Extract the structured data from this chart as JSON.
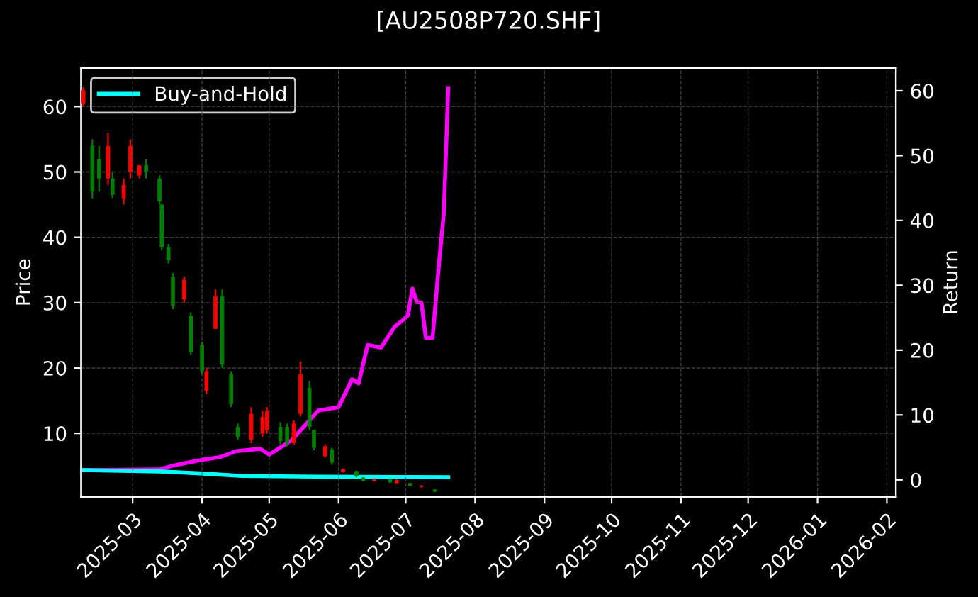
{
  "chart_data": {
    "type": "candlestick",
    "title": "[AU2508P720.SHF]",
    "ylabel": "Price",
    "y2label": "Return",
    "x": [
      "2025-02-07",
      "2025-02-11",
      "2025-02-14",
      "2025-02-18",
      "2025-02-20",
      "2025-02-25",
      "2025-02-28",
      "2025-03-04",
      "2025-03-07",
      "2025-03-13",
      "2025-03-14",
      "2025-03-17",
      "2025-03-19",
      "2025-03-24",
      "2025-03-27",
      "2025-04-01",
      "2025-04-03",
      "2025-04-07",
      "2025-04-10",
      "2025-04-14",
      "2025-04-17",
      "2025-04-23",
      "2025-04-28",
      "2025-04-30",
      "2025-05-06",
      "2025-05-09",
      "2025-05-12",
      "2025-05-15",
      "2025-05-19",
      "2025-05-21",
      "2025-05-26",
      "2025-05-29",
      "2025-06-03",
      "2025-06-09",
      "2025-06-12",
      "2025-06-17",
      "2025-06-24",
      "2025-06-27",
      "2025-07-03",
      "2025-07-08",
      "2025-07-14"
    ],
    "ohlc": [
      [
        60.5,
        63,
        60,
        62.5
      ],
      [
        54,
        55,
        46,
        47
      ],
      [
        52,
        54,
        47,
        49
      ],
      [
        49,
        56,
        48,
        54
      ],
      [
        49,
        50,
        46,
        46.5
      ],
      [
        46,
        49,
        45,
        48
      ],
      [
        50,
        55,
        49,
        54
      ],
      [
        49.5,
        51,
        49,
        51
      ],
      [
        51,
        52,
        49,
        50
      ],
      [
        49,
        49.5,
        45,
        45.5
      ],
      [
        45,
        45,
        38,
        38.5
      ],
      [
        38.5,
        39,
        36,
        36.5
      ],
      [
        34,
        34.5,
        29,
        29.5
      ],
      [
        30.5,
        34,
        30,
        33.5
      ],
      [
        28,
        28.5,
        22,
        22.5
      ],
      [
        23.5,
        24,
        19,
        19.5
      ],
      [
        16.5,
        20,
        16,
        19.5
      ],
      [
        26,
        32,
        26,
        31
      ],
      [
        31,
        32,
        20,
        20.5
      ],
      [
        19,
        19.5,
        14,
        14.5
      ],
      [
        11,
        11.5,
        9,
        9.5
      ],
      [
        9,
        14,
        8.5,
        13
      ],
      [
        10,
        13.5,
        9.5,
        12.5
      ],
      [
        10.5,
        14,
        10,
        13.5
      ],
      [
        11,
        11.7,
        8.3,
        8.8
      ],
      [
        11,
        11.5,
        8,
        8.5
      ],
      [
        8.5,
        12,
        8.2,
        11.5
      ],
      [
        13,
        21,
        12.6,
        19
      ],
      [
        17,
        18,
        10.5,
        11
      ],
      [
        10.5,
        10.5,
        7.4,
        7.8
      ],
      [
        6.5,
        8.3,
        6.3,
        8
      ],
      [
        7.5,
        7.8,
        5.2,
        5.5
      ],
      [
        4.1,
        4.6,
        4,
        4.5
      ],
      [
        4.2,
        4.3,
        3.3,
        3.4
      ],
      [
        3.2,
        3.3,
        2.6,
        2.7
      ],
      [
        2.7,
        3.1,
        2.6,
        3
      ],
      [
        3,
        3.1,
        2.4,
        2.5
      ],
      [
        2.4,
        3,
        2.3,
        2.9
      ],
      [
        2.4,
        2.4,
        1.9,
        2
      ],
      [
        1.8,
        2.1,
        1.7,
        2
      ],
      [
        1.4,
        1.5,
        1,
        1.1
      ]
    ],
    "colors": [
      "#ff0000",
      "#008000",
      "#008000",
      "#ff0000",
      "#008000",
      "#ff0000",
      "#ff0000",
      "#ff0000",
      "#008000",
      "#008000",
      "#008000",
      "#008000",
      "#008000",
      "#ff0000",
      "#008000",
      "#008000",
      "#ff0000",
      "#ff0000",
      "#008000",
      "#008000",
      "#008000",
      "#ff0000",
      "#ff0000",
      "#ff0000",
      "#008000",
      "#008000",
      "#ff0000",
      "#ff0000",
      "#008000",
      "#008000",
      "#ff0000",
      "#008000",
      "#ff0000",
      "#008000",
      "#008000",
      "#ff0000",
      "#008000",
      "#ff0000",
      "#008000",
      "#ff0000",
      "#008000"
    ],
    "series": [
      {
        "type": "line",
        "axis": "y2",
        "color": "#ff00ff",
        "x": [
          "2025-02-07",
          "2025-03-13",
          "2025-03-19",
          "2025-04-01",
          "2025-04-09",
          "2025-04-16",
          "2025-04-27",
          "2025-05-01",
          "2025-05-11",
          "2025-05-23",
          "2025-06-01",
          "2025-06-07",
          "2025-06-10",
          "2025-06-14",
          "2025-06-20",
          "2025-06-26",
          "2025-06-30",
          "2025-07-02",
          "2025-07-04",
          "2025-07-06",
          "2025-07-08",
          "2025-07-10",
          "2025-07-13",
          "2025-07-16",
          "2025-07-18",
          "2025-07-20"
        ],
        "values": [
          1.5,
          1.6,
          2.2,
          3.1,
          3.5,
          4.4,
          4.8,
          3.9,
          6.1,
          10.7,
          11.2,
          15.5,
          14.9,
          20.8,
          20.4,
          23.6,
          24.7,
          25.4,
          29.5,
          27.4,
          27.4,
          21.9,
          21.9,
          33.9,
          41,
          60.4
        ]
      },
      {
        "type": "line",
        "axis": "y2",
        "name": "Buy-and-Hold",
        "color": "#00ffff",
        "x": [
          "2025-02-07",
          "2025-03-13",
          "2025-03-31",
          "2025-04-19",
          "2025-05-22",
          "2025-07-20"
        ],
        "values": [
          1.5,
          1.3,
          1.0,
          0.6,
          0.5,
          0.4
        ]
      }
    ],
    "xlim": [
      "2025-02-06",
      "2026-02-05"
    ],
    "xticks": [
      {
        "value": "2025-03-01",
        "label": "2025-03"
      },
      {
        "value": "2025-04-01",
        "label": "2025-04"
      },
      {
        "value": "2025-05-01",
        "label": "2025-05"
      },
      {
        "value": "2025-06-01",
        "label": "2025-06"
      },
      {
        "value": "2025-07-01",
        "label": "2025-07"
      },
      {
        "value": "2025-08-01",
        "label": "2025-08"
      },
      {
        "value": "2025-09-01",
        "label": "2025-09"
      },
      {
        "value": "2025-10-01",
        "label": "2025-10"
      },
      {
        "value": "2025-11-01",
        "label": "2025-11"
      },
      {
        "value": "2025-12-01",
        "label": "2025-12"
      },
      {
        "value": "2026-01-01",
        "label": "2026-01"
      },
      {
        "value": "2026-02-01",
        "label": "2026-02"
      }
    ],
    "ylim": [
      0.3,
      65.9
    ],
    "yticks": [
      10,
      20,
      30,
      40,
      50,
      60
    ],
    "y2lim": [
      -2.6,
      63.5
    ],
    "y2ticks": [
      0,
      10,
      20,
      30,
      40,
      50,
      60
    ],
    "grid": true,
    "legend": "top left",
    "line_style": "solid",
    "marker": "none"
  }
}
